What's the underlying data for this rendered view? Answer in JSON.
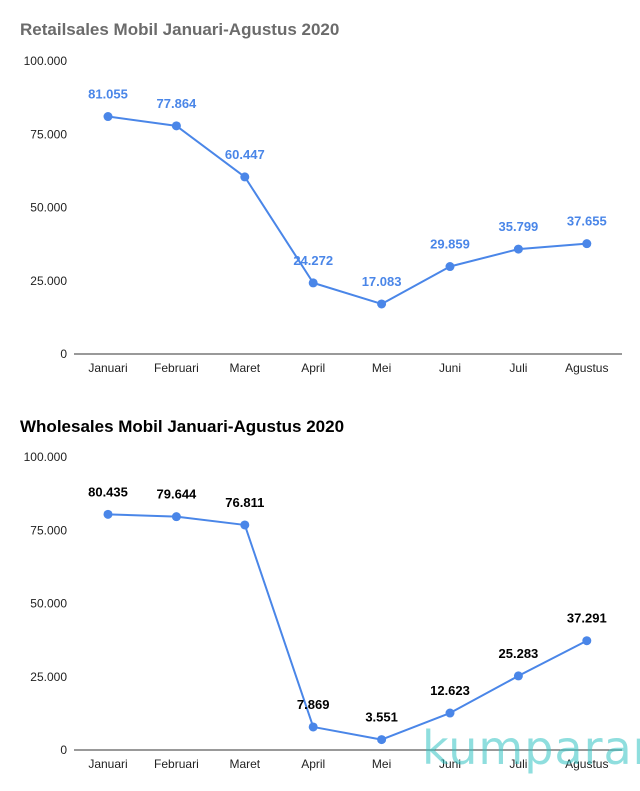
{
  "chart_data": [
    {
      "type": "line",
      "title": "Retailsales Mobil Januari-Agustus 2020",
      "title_color": "#6b6b6b",
      "label_color": "#4a86e8",
      "line_color": "#4a86e8",
      "categories": [
        "Januari",
        "Februari",
        "Maret",
        "April",
        "Mei",
        "Juni",
        "Juli",
        "Agustus"
      ],
      "values": [
        81055,
        77864,
        60447,
        24272,
        17083,
        29859,
        35799,
        37655
      ],
      "value_labels": [
        "81.055",
        "77.864",
        "60.447",
        "24.272",
        "17.083",
        "29.859",
        "35.799",
        "37.655"
      ],
      "yticks": [
        0,
        25000,
        50000,
        75000,
        100000
      ],
      "ytick_labels": [
        "0",
        "25.000",
        "50.000",
        "75.000",
        "100.000"
      ],
      "ylim": [
        0,
        100000
      ],
      "grid": false,
      "xlabel": "",
      "ylabel": ""
    },
    {
      "type": "line",
      "title": "Wholesales Mobil Januari-Agustus 2020",
      "title_color": "#000000",
      "label_color": "#000000",
      "line_color": "#4a86e8",
      "categories": [
        "Januari",
        "Februari",
        "Maret",
        "April",
        "Mei",
        "Juni",
        "Juli",
        "Agustus"
      ],
      "values": [
        80435,
        79644,
        76811,
        7869,
        3551,
        12623,
        25283,
        37291
      ],
      "value_labels": [
        "80.435",
        "79.644",
        "76.811",
        "7.869",
        "3.551",
        "12.623",
        "25.283",
        "37.291"
      ],
      "yticks": [
        0,
        25000,
        50000,
        75000,
        100000
      ],
      "ytick_labels": [
        "0",
        "25.000",
        "50.000",
        "75.000",
        "100.000"
      ],
      "ylim": [
        0,
        100000
      ],
      "grid": false,
      "xlabel": "",
      "ylabel": ""
    }
  ],
  "watermark": {
    "text": "kumparan",
    "color": "#35c4c4"
  }
}
